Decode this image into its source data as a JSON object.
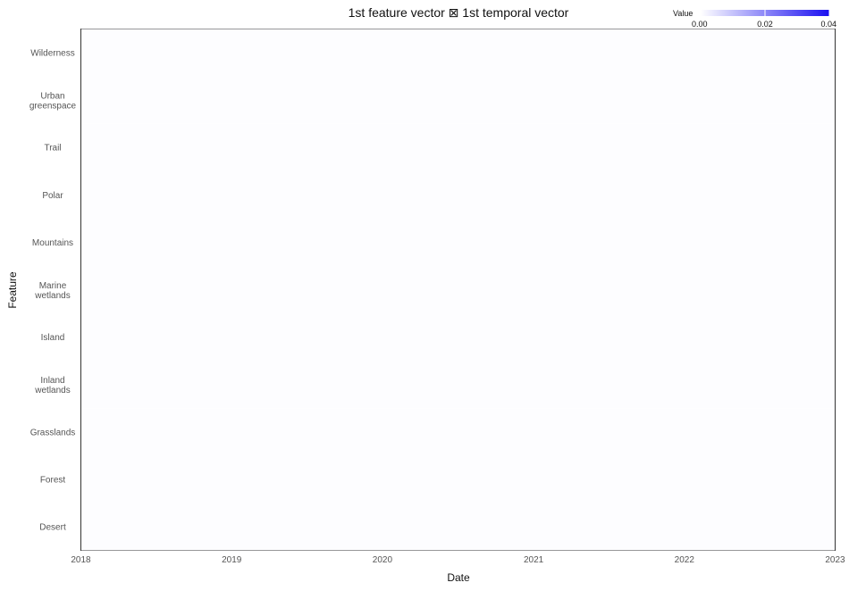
{
  "chart_data": {
    "type": "heatmap",
    "title": "1st feature vector ⊠ 1st temporal vector",
    "xlabel": "Date",
    "ylabel": "Feature",
    "y_categories": [
      "Wilderness",
      "Urban greenspace",
      "Trail",
      "Polar",
      "Mountains",
      "Marine wetlands",
      "Island",
      "Inland wetlands",
      "Grasslands",
      "Forest",
      "Desert"
    ],
    "x_range": [
      "2018-01-01",
      "2023-01-01"
    ],
    "x_ticks": [
      "2018",
      "2019",
      "2020",
      "2021",
      "2022",
      "2023"
    ],
    "value_range": [
      0,
      0.04
    ],
    "values_note": "all cells near 0.00 (appear white)",
    "legend": {
      "title": "Value",
      "ticks": [
        "0.00",
        "0.02",
        "0.04"
      ],
      "color_low": "#ffffff",
      "color_high": "#1a0ff0",
      "placement": "top-right"
    },
    "grid": false
  }
}
